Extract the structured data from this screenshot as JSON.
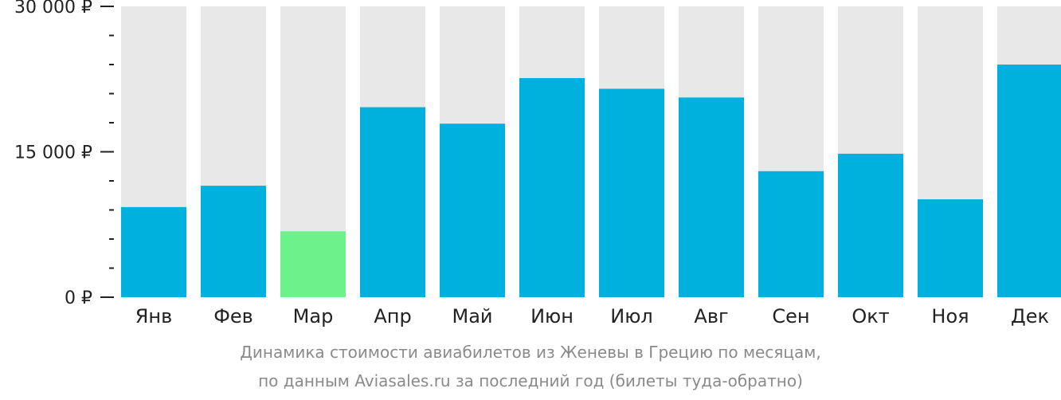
{
  "chart_data": {
    "type": "bar",
    "categories": [
      "Янв",
      "Фев",
      "Мар",
      "Апр",
      "Май",
      "Июн",
      "Июл",
      "Авг",
      "Сен",
      "Окт",
      "Ноя",
      "Дек"
    ],
    "values": [
      9300,
      11500,
      6800,
      19600,
      17900,
      22600,
      21500,
      20600,
      13000,
      14800,
      10100,
      24000
    ],
    "ylim": [
      0,
      30000
    ],
    "yticks": [
      {
        "value": 30000,
        "label": "30 000 ₽"
      },
      {
        "value": 15000,
        "label": "15 000 ₽"
      },
      {
        "value": 0,
        "label": "0 ₽"
      }
    ],
    "minor_tick_step": 3000,
    "highlight_index": 2,
    "colors": {
      "bar": "#00b0dd",
      "highlight": "#6cf28a",
      "background_bar": "#e8e8e8",
      "axis": "#222222"
    },
    "grid": false,
    "legend": "none"
  },
  "caption": {
    "line1": "Динамика стоимости авиабилетов из Женевы в Грецию по месяцам,",
    "line2": "по данным Aviasales.ru за последний год (билеты туда-обратно)"
  }
}
